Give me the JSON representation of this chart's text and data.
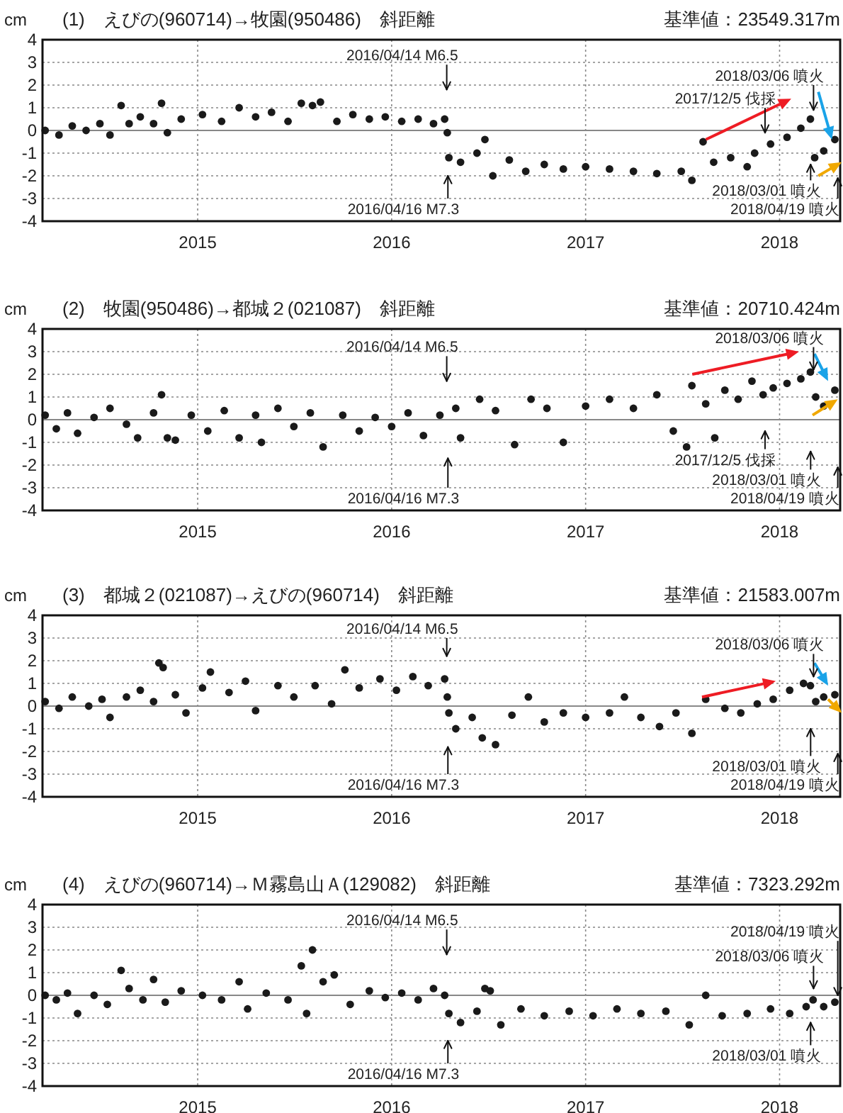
{
  "chart_data": [
    {
      "type": "scatter",
      "title": "(1)　えびの(960714)→牧園(950486)　斜距離",
      "subtitle": "基準値：23549.317m",
      "ylabel": "cm",
      "color": "#1a1a1a",
      "marker": "circle",
      "grid": true,
      "xlim": [
        "2014-03-15",
        "2018-04-25"
      ],
      "ylim": [
        -4,
        4
      ],
      "xticks": [
        {
          "value": "2015-01-01",
          "label": "2015"
        },
        {
          "value": "2016-01-01",
          "label": "2016"
        },
        {
          "value": "2017-01-01",
          "label": "2017"
        },
        {
          "value": "2018-01-01",
          "label": "2018"
        }
      ],
      "yticks": [
        -4,
        -3,
        -2,
        -1,
        0,
        1,
        2,
        3,
        4
      ],
      "ref_lines": [
        {
          "axis": "y",
          "value": 0
        }
      ],
      "x": [
        "2014-03-20",
        "2014-04-15",
        "2014-05-10",
        "2014-06-05",
        "2014-07-01",
        "2014-07-20",
        "2014-08-10",
        "2014-08-25",
        "2014-09-15",
        "2014-10-10",
        "2014-10-25",
        "2014-11-05",
        "2014-12-01",
        "2015-01-10",
        "2015-02-15",
        "2015-03-20",
        "2015-04-20",
        "2015-05-20",
        "2015-06-20",
        "2015-07-15",
        "2015-08-05",
        "2015-08-20",
        "2015-09-20",
        "2015-10-20",
        "2015-11-20",
        "2015-12-20",
        "2016-01-20",
        "2016-02-20",
        "2016-03-20",
        "2016-04-10",
        "2016-04-15",
        "2016-04-18",
        "2016-05-10",
        "2016-06-10",
        "2016-06-25",
        "2016-07-10",
        "2016-08-10",
        "2016-09-10",
        "2016-10-15",
        "2016-11-20",
        "2017-01-01",
        "2017-02-15",
        "2017-04-01",
        "2017-05-15",
        "2017-06-30",
        "2017-07-20",
        "2017-08-10",
        "2017-08-30",
        "2017-10-01",
        "2017-11-01",
        "2017-11-15",
        "2017-12-15",
        "2018-01-15",
        "2018-02-10",
        "2018-02-28",
        "2018-03-08",
        "2018-03-25",
        "2018-04-15"
      ],
      "values": [
        0.0,
        -0.2,
        0.2,
        0.0,
        0.3,
        -0.2,
        1.1,
        0.3,
        0.6,
        0.3,
        1.2,
        -0.1,
        0.5,
        0.7,
        0.4,
        1.0,
        0.6,
        0.8,
        0.4,
        1.2,
        1.1,
        1.25,
        0.4,
        0.7,
        0.5,
        0.6,
        0.4,
        0.5,
        0.3,
        0.5,
        -0.1,
        -1.2,
        -1.4,
        -1.0,
        -0.4,
        -2.0,
        -1.3,
        -1.8,
        -1.5,
        -1.7,
        -1.6,
        -1.7,
        -1.8,
        -1.9,
        -1.8,
        -2.2,
        -0.5,
        -1.4,
        -1.2,
        -1.6,
        -1.0,
        -0.6,
        -0.3,
        0.1,
        0.5,
        -1.2,
        -0.9,
        -0.4
      ],
      "annotations": [
        "2016/04/14 M6.5",
        "2016/04/16 M7.3",
        "2017/12/5 伐採",
        "2018/03/06 噴火",
        "2018/03/01 噴火",
        "2018/04/19 噴火"
      ]
    },
    {
      "type": "scatter",
      "title": "(2)　牧園(950486)→都城２(021087)　斜距離",
      "subtitle": "基準値：20710.424m",
      "ylabel": "cm",
      "color": "#1a1a1a",
      "marker": "circle",
      "grid": true,
      "xlim": [
        "2014-03-15",
        "2018-04-25"
      ],
      "ylim": [
        -4,
        4
      ],
      "xticks": [
        {
          "value": "2015-01-01",
          "label": "2015"
        },
        {
          "value": "2016-01-01",
          "label": "2016"
        },
        {
          "value": "2017-01-01",
          "label": "2017"
        },
        {
          "value": "2018-01-01",
          "label": "2018"
        }
      ],
      "yticks": [
        -4,
        -3,
        -2,
        -1,
        0,
        1,
        2,
        3,
        4
      ],
      "ref_lines": [
        {
          "axis": "y",
          "value": 0
        }
      ],
      "x": [
        "2014-03-20",
        "2014-04-10",
        "2014-05-01",
        "2014-05-20",
        "2014-06-20",
        "2014-07-20",
        "2014-08-20",
        "2014-09-10",
        "2014-10-10",
        "2014-10-25",
        "2014-11-05",
        "2014-11-20",
        "2014-12-20",
        "2015-01-20",
        "2015-02-20",
        "2015-03-20",
        "2015-04-20",
        "2015-05-01",
        "2015-06-01",
        "2015-07-01",
        "2015-08-01",
        "2015-08-25",
        "2015-10-01",
        "2015-11-01",
        "2015-12-01",
        "2016-01-01",
        "2016-02-01",
        "2016-03-01",
        "2016-04-01",
        "2016-05-01",
        "2016-05-10",
        "2016-06-15",
        "2016-07-15",
        "2016-08-20",
        "2016-09-20",
        "2016-10-20",
        "2016-11-20",
        "2017-01-01",
        "2017-02-15",
        "2017-04-01",
        "2017-05-15",
        "2017-06-15",
        "2017-07-10",
        "2017-07-20",
        "2017-08-15",
        "2017-09-01",
        "2017-09-20",
        "2017-10-15",
        "2017-11-10",
        "2017-12-01",
        "2017-12-20",
        "2018-01-15",
        "2018-02-10",
        "2018-02-28",
        "2018-03-10",
        "2018-03-25",
        "2018-04-15"
      ],
      "values": [
        0.2,
        -0.4,
        0.3,
        -0.6,
        0.1,
        0.5,
        -0.2,
        -0.8,
        0.3,
        1.1,
        -0.8,
        -0.9,
        0.2,
        -0.5,
        0.4,
        -0.8,
        0.2,
        -1.0,
        0.5,
        -0.3,
        0.3,
        -1.2,
        0.2,
        -0.5,
        0.1,
        -0.3,
        0.3,
        -0.7,
        0.2,
        0.5,
        -0.8,
        0.9,
        0.4,
        -1.1,
        0.9,
        0.5,
        -1.0,
        0.6,
        0.9,
        0.5,
        1.1,
        -0.5,
        -1.2,
        1.5,
        0.7,
        -0.8,
        1.3,
        0.9,
        1.7,
        1.1,
        1.4,
        1.6,
        1.8,
        2.1,
        1.0,
        0.6,
        1.3
      ],
      "annotations": [
        "2016/04/14 M6.5",
        "2016/04/16 M7.3",
        "2017/12/5 伐採",
        "2018/03/06 噴火",
        "2018/03/01 噴火",
        "2018/04/19 噴火"
      ]
    },
    {
      "type": "scatter",
      "title": "(3)　都城２(021087)→えびの(960714)　斜距離",
      "subtitle": "基準値：21583.007m",
      "ylabel": "cm",
      "color": "#1a1a1a",
      "marker": "circle",
      "grid": true,
      "xlim": [
        "2014-03-15",
        "2018-04-25"
      ],
      "ylim": [
        -4,
        4
      ],
      "xticks": [
        {
          "value": "2015-01-01",
          "label": "2015"
        },
        {
          "value": "2016-01-01",
          "label": "2016"
        },
        {
          "value": "2017-01-01",
          "label": "2017"
        },
        {
          "value": "2018-01-01",
          "label": "2018"
        }
      ],
      "yticks": [
        -4,
        -3,
        -2,
        -1,
        0,
        1,
        2,
        3,
        4
      ],
      "ref_lines": [
        {
          "axis": "y",
          "value": 0
        }
      ],
      "x": [
        "2014-03-20",
        "2014-04-15",
        "2014-05-10",
        "2014-06-10",
        "2014-07-05",
        "2014-07-20",
        "2014-08-20",
        "2014-09-15",
        "2014-10-10",
        "2014-10-20",
        "2014-10-28",
        "2014-11-20",
        "2014-12-10",
        "2015-01-10",
        "2015-01-25",
        "2015-03-01",
        "2015-04-01",
        "2015-04-20",
        "2015-06-01",
        "2015-07-01",
        "2015-08-10",
        "2015-09-10",
        "2015-10-05",
        "2015-11-01",
        "2015-12-10",
        "2016-01-10",
        "2016-02-10",
        "2016-03-10",
        "2016-04-10",
        "2016-04-15",
        "2016-04-18",
        "2016-05-01",
        "2016-06-01",
        "2016-06-20",
        "2016-07-15",
        "2016-08-15",
        "2016-09-15",
        "2016-10-15",
        "2016-11-20",
        "2017-01-01",
        "2017-02-15",
        "2017-03-15",
        "2017-04-15",
        "2017-05-20",
        "2017-06-20",
        "2017-07-20",
        "2017-08-15",
        "2017-09-20",
        "2017-10-20",
        "2017-11-20",
        "2017-12-20",
        "2018-01-20",
        "2018-02-15",
        "2018-02-28",
        "2018-03-10",
        "2018-03-25",
        "2018-04-15"
      ],
      "values": [
        0.2,
        -0.1,
        0.4,
        0.0,
        0.3,
        -0.5,
        0.4,
        0.7,
        0.2,
        1.9,
        1.7,
        0.5,
        -0.3,
        0.8,
        1.5,
        0.6,
        1.1,
        -0.2,
        0.9,
        0.4,
        0.9,
        0.1,
        1.6,
        0.8,
        1.2,
        0.7,
        1.3,
        0.9,
        1.2,
        0.4,
        -0.3,
        -1.0,
        -0.5,
        -1.4,
        -1.7,
        -0.4,
        0.4,
        -0.7,
        -0.3,
        -0.5,
        -0.3,
        0.4,
        -0.5,
        -0.9,
        -0.3,
        -1.2,
        0.3,
        -0.1,
        -0.3,
        0.1,
        0.3,
        0.7,
        1.0,
        0.9,
        0.2,
        0.4,
        0.5
      ],
      "annotations": [
        "2016/04/14 M6.5",
        "2016/04/16 M7.3",
        "2018/03/06 噴火",
        "2018/03/01 噴火",
        "2018/04/19 噴火"
      ]
    },
    {
      "type": "scatter",
      "title": "(4)　えびの(960714)→Ｍ霧島山Ａ(129082)　斜距離",
      "subtitle": "基準値：7323.292m",
      "ylabel": "cm",
      "color": "#1a1a1a",
      "marker": "circle",
      "grid": true,
      "xlim": [
        "2014-03-15",
        "2018-04-25"
      ],
      "ylim": [
        -4,
        4
      ],
      "xticks": [
        {
          "value": "2015-01-01",
          "label": "2015"
        },
        {
          "value": "2016-01-01",
          "label": "2016"
        },
        {
          "value": "2017-01-01",
          "label": "2017"
        },
        {
          "value": "2018-01-01",
          "label": "2018"
        }
      ],
      "yticks": [
        -4,
        -3,
        -2,
        -1,
        0,
        1,
        2,
        3,
        4
      ],
      "ref_lines": [
        {
          "axis": "y",
          "value": 0
        }
      ],
      "x": [
        "2014-03-20",
        "2014-04-10",
        "2014-05-01",
        "2014-05-20",
        "2014-06-20",
        "2014-07-15",
        "2014-08-10",
        "2014-08-25",
        "2014-09-20",
        "2014-10-10",
        "2014-11-01",
        "2014-12-01",
        "2015-01-10",
        "2015-02-15",
        "2015-03-20",
        "2015-04-05",
        "2015-05-10",
        "2015-06-20",
        "2015-07-15",
        "2015-07-25",
        "2015-08-05",
        "2015-08-25",
        "2015-09-15",
        "2015-10-15",
        "2015-11-20",
        "2015-12-20",
        "2016-01-20",
        "2016-02-20",
        "2016-03-20",
        "2016-04-10",
        "2016-04-18",
        "2016-05-10",
        "2016-06-10",
        "2016-06-25",
        "2016-07-05",
        "2016-07-25",
        "2016-09-01",
        "2016-10-15",
        "2016-12-01",
        "2017-01-15",
        "2017-03-01",
        "2017-04-15",
        "2017-06-01",
        "2017-07-15",
        "2017-08-15",
        "2017-09-15",
        "2017-11-01",
        "2017-12-15",
        "2018-01-20",
        "2018-02-20",
        "2018-03-05",
        "2018-03-25",
        "2018-04-15"
      ],
      "values": [
        0.0,
        -0.2,
        0.1,
        -0.8,
        0.0,
        -0.4,
        1.1,
        0.3,
        -0.2,
        0.7,
        -0.3,
        0.2,
        0.0,
        -0.2,
        0.6,
        -0.6,
        0.1,
        -0.2,
        1.3,
        -0.8,
        2.0,
        0.6,
        0.9,
        -0.4,
        0.2,
        -0.1,
        0.1,
        -0.2,
        0.3,
        0.0,
        -0.8,
        -1.2,
        -0.7,
        0.3,
        0.2,
        -1.3,
        -0.6,
        -0.9,
        -0.7,
        -0.9,
        -0.6,
        -0.8,
        -0.7,
        -1.3,
        0.0,
        -0.9,
        -0.8,
        -0.6,
        -0.8,
        -0.5,
        -0.2,
        -0.5,
        -0.3
      ],
      "annotations": [
        "2016/04/14 M6.5",
        "2016/04/16 M7.3",
        "2018/04/19 噴火",
        "2018/03/06 噴火",
        "2018/03/01 噴火"
      ]
    }
  ]
}
